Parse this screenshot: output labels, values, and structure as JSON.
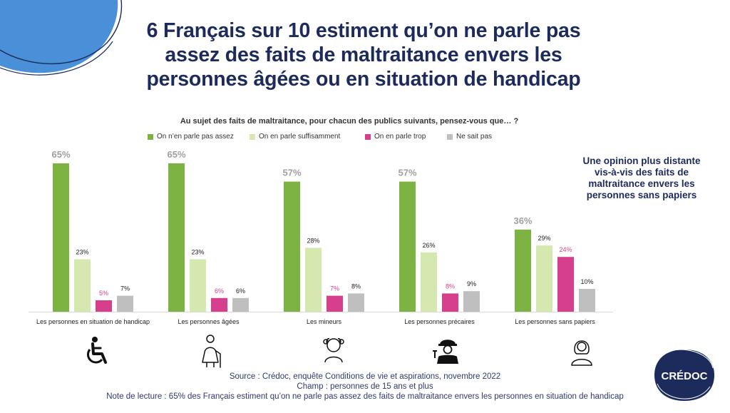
{
  "title_lines": [
    "6 Français sur 10 estiment qu’on ne parle pas",
    "assez des faits de maltraitance envers les",
    "personnes âgées ou en situation de handicap"
  ],
  "question": "Au sujet des faits de maltraitance, pour chacun des publics suivants, pensez-vous que… ?",
  "callout_lines": [
    "Une opinion plus distante",
    "vis-à-vis des faits de",
    "maltraitance envers les",
    "personnes sans papiers"
  ],
  "colors": {
    "title": "#1c2a5c",
    "series": [
      "#7cb342",
      "#d4e8b0",
      "#d63f8c",
      "#bfbfbf"
    ],
    "label_pink": "#d63f8c",
    "label_grey_big": "#a0a0a0",
    "logo": "#1c2a5c"
  },
  "chart_data": {
    "type": "bar",
    "title": "Au sujet des faits de maltraitance, pour chacun des publics suivants, pensez-vous que… ?",
    "categories": [
      "Les personnes en situation de handicap",
      "Les personnes âgées",
      "Les mineurs",
      "Les personnes précaires",
      "Les personnes sans papiers"
    ],
    "series": [
      {
        "name": "On n’en parle pas assez",
        "values": [
          65,
          65,
          57,
          57,
          36
        ],
        "labels": [
          "65%",
          "65%",
          "57%",
          "57%",
          "36%"
        ]
      },
      {
        "name": "On en parle suffisamment",
        "values": [
          23,
          23,
          28,
          26,
          29
        ],
        "labels": [
          "23%",
          "23%",
          "28%",
          "26%",
          "29%"
        ]
      },
      {
        "name": "On en parle trop",
        "values": [
          5,
          6,
          7,
          8,
          24
        ],
        "labels": [
          "5%",
          "6%",
          "7%",
          "8%",
          "24%"
        ]
      },
      {
        "name": "Ne sait pas",
        "values": [
          7,
          6,
          8,
          9,
          10
        ],
        "labels": [
          "7%",
          "6%",
          "8%",
          "9%",
          "10%"
        ]
      }
    ],
    "ylim": [
      0,
      65
    ],
    "legend_position": "top",
    "grid": false
  },
  "icons": [
    "wheelchair-icon",
    "elderly-person-icon",
    "child-icon",
    "worker-icon",
    "woman-icon"
  ],
  "footer": {
    "source": "Source : Crédoc, enquête Conditions de vie et aspirations, novembre 2022",
    "champ": "Champ : personnes de 15 ans et plus",
    "note": "Note de lecture : 65% des Français estiment qu’on ne parle pas assez des faits de maltraitance envers les personnes en situation de handicap"
  },
  "logo_text": "CRÉDOC"
}
